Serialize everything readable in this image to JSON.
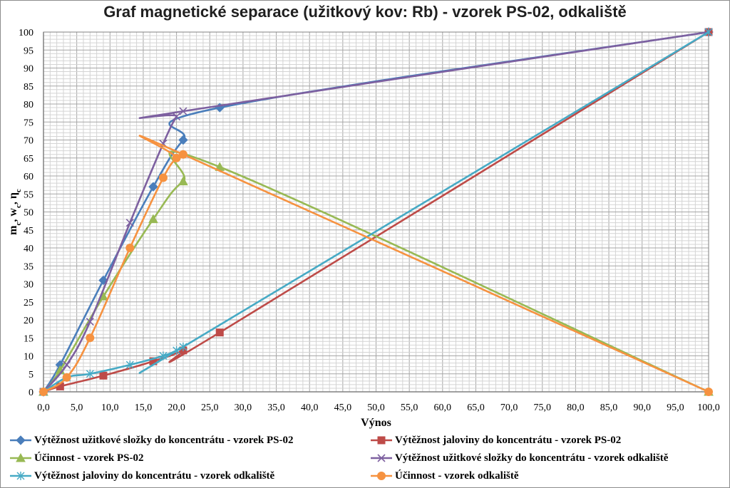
{
  "chart_data": {
    "type": "line",
    "title": "Graf magnetické separace (užitkový kov: Rb) - vzorek PS-02, odkaliště",
    "xlabel": "Výnos",
    "ylabel_parts": [
      "m",
      "c",
      ", w",
      "c",
      ", η",
      "c"
    ],
    "xlim": [
      0,
      100
    ],
    "ylim": [
      0,
      100
    ],
    "x_ticks": [
      "0,0",
      "5,0",
      "10,0",
      "15,0",
      "20,0",
      "25,0",
      "30,0",
      "35,0",
      "40,0",
      "45,0",
      "50,0",
      "55,0",
      "60,0",
      "65,0",
      "70,0",
      "75,0",
      "80,0",
      "85,0",
      "90,0",
      "95,0",
      "100,0"
    ],
    "y_ticks": [
      "0",
      "5",
      "10",
      "15",
      "20",
      "25",
      "30",
      "35",
      "40",
      "45",
      "50",
      "55",
      "60",
      "65",
      "70",
      "75",
      "80",
      "85",
      "90",
      "95",
      "100"
    ],
    "grid": true,
    "legend_position": "bottom",
    "series": [
      {
        "name": "Výtěžnost užitkové složky do koncentrátu - vzorek PS-02",
        "color": "#4a7ebb",
        "marker": "diamond",
        "points": [
          [
            0,
            0
          ],
          [
            2.5,
            7.5
          ],
          [
            9,
            31
          ],
          [
            16.5,
            57
          ],
          [
            21,
            70
          ],
          [
            26.5,
            79
          ],
          [
            100,
            100
          ]
        ]
      },
      {
        "name": "Výtěžnost jaloviny do koncentrátu - vzorek PS-02",
        "color": "#be4b48",
        "marker": "square",
        "points": [
          [
            0,
            0
          ],
          [
            2.5,
            1.5
          ],
          [
            9,
            4.5
          ],
          [
            16.5,
            8.5
          ],
          [
            21,
            11.5
          ],
          [
            26.5,
            16.5
          ],
          [
            100,
            100
          ]
        ]
      },
      {
        "name": "Účinnost - vzorek PS-02",
        "color": "#98b954",
        "marker": "triangle",
        "points": [
          [
            0,
            0
          ],
          [
            2.5,
            6
          ],
          [
            9,
            26.5
          ],
          [
            16.5,
            48
          ],
          [
            21,
            58.5
          ],
          [
            26.5,
            62.5
          ],
          [
            100,
            0
          ]
        ]
      },
      {
        "name": "Výtěžnost užitkové složky do koncentrátu - vzorek odkaliště",
        "color": "#7d60a0",
        "marker": "x",
        "points": [
          [
            0,
            0
          ],
          [
            3.5,
            7.5
          ],
          [
            7,
            19.5
          ],
          [
            13,
            47
          ],
          [
            18,
            69
          ],
          [
            20,
            76.5
          ],
          [
            21,
            78
          ],
          [
            100,
            100
          ]
        ]
      },
      {
        "name": "Výtěžnost jaloviny do koncentrátu - vzorek odkaliště",
        "color": "#46aac5",
        "marker": "star",
        "points": [
          [
            0,
            0
          ],
          [
            3.5,
            4
          ],
          [
            7,
            5
          ],
          [
            13,
            7.5
          ],
          [
            18,
            10
          ],
          [
            20,
            11.5
          ],
          [
            21,
            12.5
          ],
          [
            100,
            100
          ]
        ]
      },
      {
        "name": "Účinnost - vzorek odkaliště",
        "color": "#f69240",
        "marker": "circle",
        "points": [
          [
            0,
            0
          ],
          [
            3.5,
            4
          ],
          [
            7,
            15
          ],
          [
            13,
            40
          ],
          [
            18,
            59.5
          ],
          [
            20,
            65
          ],
          [
            21,
            66
          ],
          [
            100,
            0
          ]
        ]
      }
    ]
  }
}
